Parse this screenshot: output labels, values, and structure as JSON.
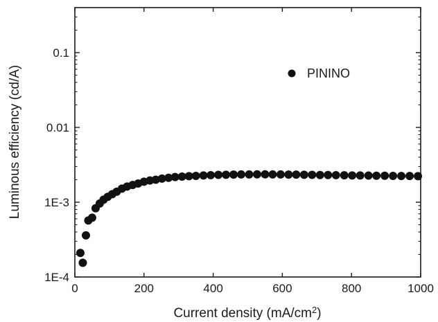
{
  "chart_data": {
    "type": "scatter",
    "title": "",
    "xlabel": "Current density (mA/cm",
    "xlabel_sup": "2",
    "xlabel_close": ")",
    "ylabel": "Luminous efficiency (cd/A)",
    "xlim": [
      0,
      1000
    ],
    "ylim": [
      0.0001,
      0.4
    ],
    "y_scale": "log",
    "x_ticks": [
      0,
      200,
      400,
      600,
      800,
      1000
    ],
    "x_tick_labels": [
      "0",
      "200",
      "400",
      "600",
      "800",
      "1000"
    ],
    "y_ticks": [
      0.0001,
      0.001,
      0.01,
      0.1
    ],
    "y_tick_labels": [
      "1E-4",
      "1E-3",
      "0.01",
      "0.1"
    ],
    "grid": false,
    "legend_position": "top-right",
    "marker_color": "#111111",
    "series": [
      {
        "name": "PININO",
        "x": [
          16,
          23,
          32,
          39,
          50,
          60,
          72,
          83,
          95,
          108,
          121,
          136,
          151,
          167,
          183,
          200,
          217,
          234,
          252,
          271,
          290,
          310,
          330,
          350,
          372,
          393,
          415,
          437,
          459,
          481,
          504,
          527,
          550,
          572,
          595,
          618,
          640,
          663,
          686,
          709,
          732,
          755,
          779,
          802,
          825,
          849,
          872,
          896,
          920,
          944,
          968,
          992
        ],
        "y": [
          0.00021,
          0.000155,
          0.00036,
          0.00057,
          0.00062,
          0.00083,
          0.00096,
          0.00108,
          0.00118,
          0.00128,
          0.00138,
          0.00152,
          0.00162,
          0.0017,
          0.00178,
          0.00188,
          0.00195,
          0.002,
          0.00207,
          0.00212,
          0.00217,
          0.0022,
          0.00223,
          0.00225,
          0.00228,
          0.0023,
          0.00232,
          0.00233,
          0.00234,
          0.00235,
          0.00235,
          0.00236,
          0.00236,
          0.00235,
          0.00235,
          0.00234,
          0.00234,
          0.00233,
          0.00232,
          0.00231,
          0.00231,
          0.0023,
          0.00229,
          0.00228,
          0.00228,
          0.00227,
          0.00226,
          0.00226,
          0.00225,
          0.00224,
          0.00224,
          0.00223
        ]
      }
    ]
  }
}
